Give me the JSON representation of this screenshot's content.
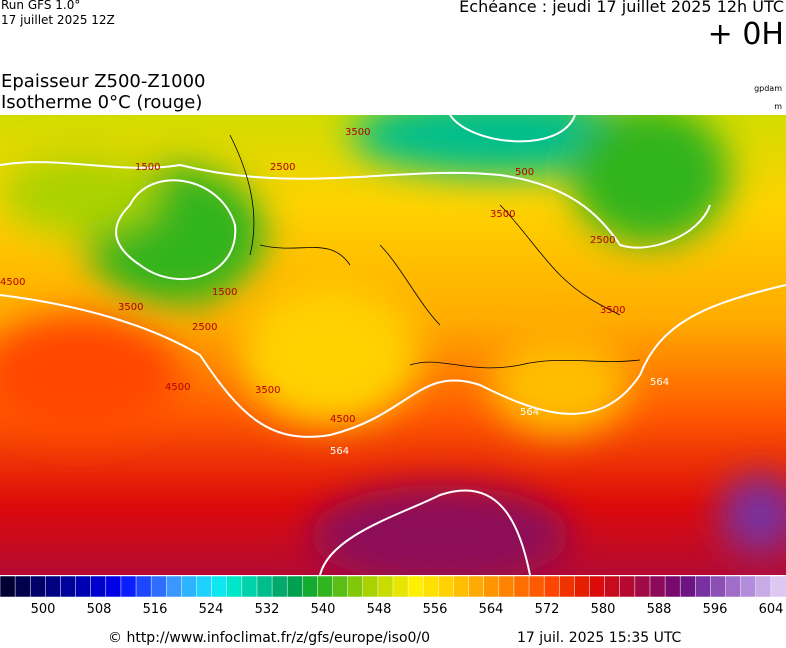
{
  "header": {
    "run": "Run GFS 1.0°",
    "run_date": "17 juillet 2025 12Z",
    "valid": "Echéance : jeudi 17 juillet 2025 12h UTC",
    "lead": "+ 0H"
  },
  "title": {
    "line1": "Epaisseur Z500-Z1000",
    "line2": "Isotherme 0°C (rouge)",
    "unit_top": "gpdam",
    "unit_bottom": "m"
  },
  "map_labels": [
    "3500",
    "2500",
    "1500",
    "500",
    "3500",
    "2500",
    "4500",
    "3500",
    "3500",
    "4500",
    "564",
    "564",
    "564",
    "2500",
    "1500",
    "3500",
    "4500"
  ],
  "colorbar": {
    "ticks": [
      500,
      508,
      516,
      524,
      532,
      540,
      548,
      556,
      564,
      572,
      580,
      588,
      596,
      604
    ],
    "colors": [
      "#000033",
      "#00004d",
      "#000066",
      "#000080",
      "#00009a",
      "#0000b3",
      "#0000cc",
      "#0000e6",
      "#0a1eff",
      "#1e46ff",
      "#2d6eff",
      "#3c96ff",
      "#2db4ff",
      "#1ed2ff",
      "#0fe6f0",
      "#00e6c8",
      "#00d2aa",
      "#00be8c",
      "#00aa6e",
      "#00a050",
      "#14aa32",
      "#32b41e",
      "#5abe14",
      "#82c80a",
      "#aad200",
      "#c8dc00",
      "#e6e600",
      "#fff000",
      "#ffe100",
      "#ffd200",
      "#ffbe00",
      "#ffaa00",
      "#ff9600",
      "#ff8200",
      "#ff6e00",
      "#ff5a00",
      "#ff4600",
      "#f03200",
      "#e61e00",
      "#dc0a0a",
      "#c80a1e",
      "#b40a32",
      "#a00a46",
      "#8c0a5a",
      "#780a6e",
      "#6e1482",
      "#7832a0",
      "#8c50b4",
      "#a06ec8",
      "#b48cdc",
      "#c8aae6",
      "#dcc8f0"
    ]
  },
  "footer": {
    "url": "© http://www.infoclimat.fr/z/gfs/europe/iso0/0",
    "generated": "17 juil. 2025 15:35 UTC"
  }
}
